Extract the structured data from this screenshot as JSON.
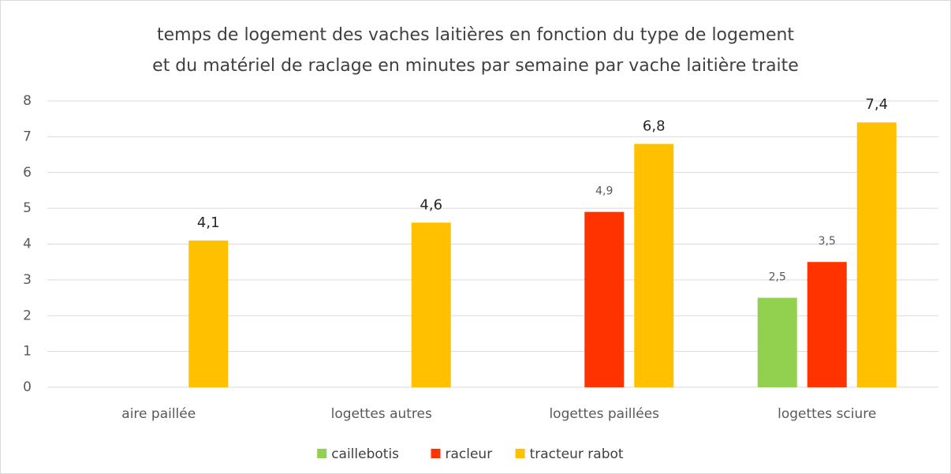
{
  "chart_data": {
    "type": "bar",
    "title": [
      "temps de logement des vaches laitières en fonction du type de logement",
      "et du matériel de raclage en minutes par semaine par vache laitière traite"
    ],
    "categories": [
      "aire paillée",
      "logettes autres",
      "logettes paillées",
      "logettes sciure"
    ],
    "series": [
      {
        "name": "caillebotis",
        "color": "#92d050",
        "values": [
          null,
          null,
          null,
          2.5
        ],
        "value_labels": [
          null,
          null,
          null,
          "2,5"
        ]
      },
      {
        "name": "racleur",
        "color": "#ff3300",
        "values": [
          null,
          null,
          4.9,
          3.5
        ],
        "value_labels": [
          null,
          null,
          "4,9",
          "3,5"
        ]
      },
      {
        "name": "tracteur rabot",
        "color": "#ffc000",
        "values": [
          4.1,
          4.6,
          6.8,
          7.4
        ],
        "value_labels": [
          "4,1",
          "4,6",
          "6,8",
          "7,4"
        ]
      }
    ],
    "ylim": [
      0,
      8
    ],
    "yticks": [
      0,
      1,
      2,
      3,
      4,
      5,
      6,
      7,
      8
    ],
    "grid": true,
    "legend": "bottom"
  }
}
